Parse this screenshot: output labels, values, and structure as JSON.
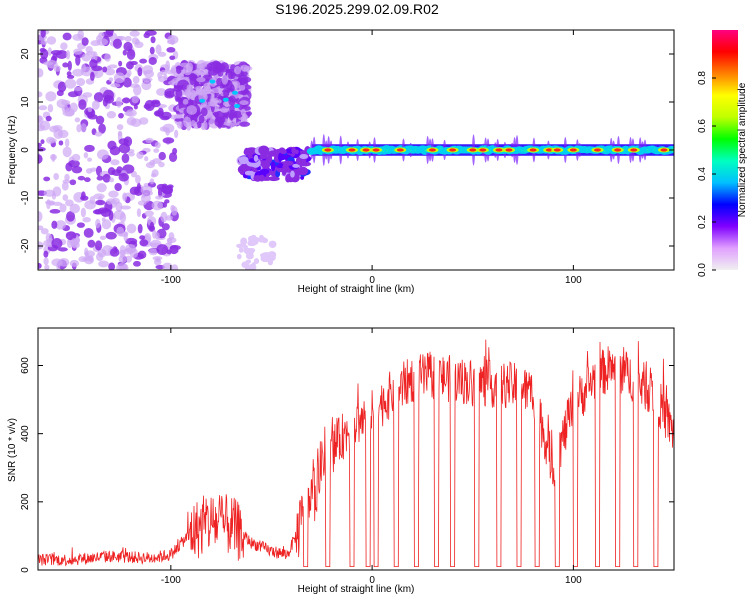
{
  "title": "S196.2025.299.02.09.R02",
  "chart_data": [
    {
      "type": "heatmap",
      "xlabel": "Height of straight line (km)",
      "ylabel": "Frequency (Hz)",
      "xlim": [
        -166,
        150
      ],
      "ylim": [
        -25,
        25
      ],
      "xticks": [
        -100,
        0,
        100
      ],
      "yticks": [
        -20,
        -10,
        0,
        10,
        20
      ],
      "colorbar": {
        "label": "Normalized spectral amplitude",
        "range": [
          0,
          1
        ],
        "ticks": [
          0.0,
          0.2,
          0.4,
          0.6,
          0.8
        ],
        "tick_labels": [
          "0.0",
          "0.2",
          "0.4",
          "0.6",
          "0.8"
        ],
        "colors": [
          "#f0f0f0",
          "#e0a0ff",
          "#8000ff",
          "#0000ff",
          "#00c0ff",
          "#00ffc0",
          "#00ff00",
          "#c0ff00",
          "#ffff00",
          "#ff8000",
          "#ff0000",
          "#ff0080"
        ]
      },
      "features": [
        {
          "name": "noise region",
          "x_range": [
            -166,
            -97
          ],
          "freq_range": [
            -25,
            25
          ],
          "amplitude": 0.12
        },
        {
          "name": "high-frequency blob",
          "x_range": [
            -97,
            -62
          ],
          "freq_range": [
            5,
            18
          ],
          "amplitude": 0.3
        },
        {
          "name": "converging trace",
          "x_range": [
            -65,
            -32
          ],
          "freq_range": [
            -6,
            0
          ],
          "amplitude": 0.4
        },
        {
          "name": "central ridge",
          "x_range": [
            -30,
            150
          ],
          "freq_center": 0,
          "amplitude": 0.8
        }
      ]
    },
    {
      "type": "line",
      "xlabel": "Height of straight line (km)",
      "ylabel": "SNR (10 * v/v)",
      "xlim": [
        -166,
        150
      ],
      "ylim": [
        0,
        710
      ],
      "xticks": [
        -100,
        0,
        100
      ],
      "yticks": [
        0,
        200,
        400,
        600
      ],
      "color": "#ee2222",
      "x": [
        -166,
        -150,
        -130,
        -110,
        -100,
        -90,
        -80,
        -70,
        -60,
        -50,
        -42,
        -35,
        -30,
        -25,
        -20,
        -15,
        -10,
        -5,
        0,
        10,
        20,
        30,
        40,
        50,
        60,
        70,
        80,
        90,
        100,
        110,
        120,
        130,
        140,
        150
      ],
      "values": [
        30,
        30,
        40,
        35,
        45,
        110,
        140,
        130,
        80,
        55,
        45,
        140,
        200,
        310,
        350,
        390,
        420,
        440,
        460,
        520,
        560,
        570,
        560,
        550,
        545,
        540,
        520,
        300,
        480,
        560,
        600,
        560,
        520,
        400
      ],
      "dropouts_x": [
        -33,
        -22,
        -10,
        -2,
        2,
        12,
        22,
        32,
        40,
        52,
        63,
        73,
        82,
        92,
        101,
        112,
        122,
        131,
        141
      ],
      "dropout_value": 10
    }
  ]
}
